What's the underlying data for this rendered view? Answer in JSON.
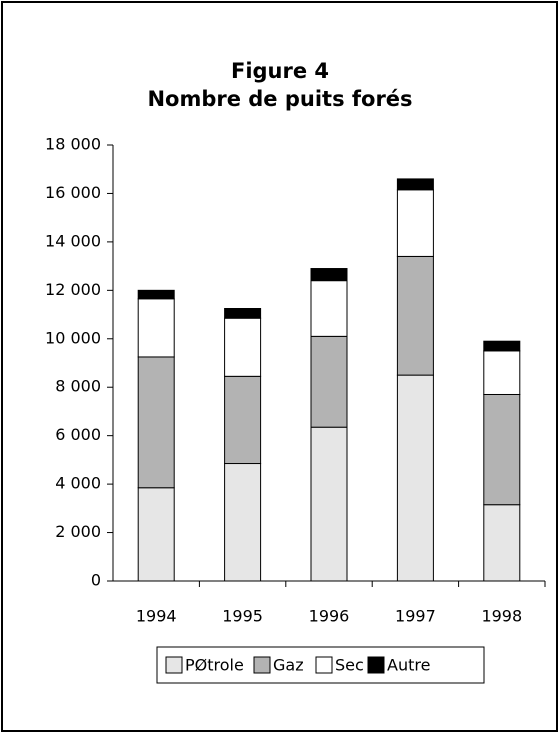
{
  "chart_data": {
    "type": "stacked_bar",
    "title": "Figure 4",
    "subtitle": "Nombre de puits forés",
    "categories": [
      "1994",
      "1995",
      "1996",
      "1997",
      "1998"
    ],
    "series": [
      {
        "name": "PØtrole",
        "color": "#e6e6e6",
        "values": [
          3850,
          4850,
          6350,
          8500,
          3150
        ]
      },
      {
        "name": "Gaz",
        "color": "#b3b3b3",
        "values": [
          5400,
          3600,
          3750,
          4900,
          4550
        ]
      },
      {
        "name": "Sec",
        "color": "#ffffff",
        "values": [
          2400,
          2400,
          2300,
          2750,
          1800
        ]
      },
      {
        "name": "Autre",
        "color": "#000000",
        "values": [
          350,
          400,
          500,
          450,
          400
        ]
      }
    ],
    "ylim": [
      0,
      18000
    ],
    "yticks": [
      0,
      {
        "value": 2000,
        "label": "2 000"
      },
      {
        "value": 4000,
        "label": "4 000"
      },
      {
        "value": 6000,
        "label": "6 000"
      },
      {
        "value": 8000,
        "label": "8 000"
      },
      {
        "value": 10000,
        "label": "10 000"
      },
      {
        "value": 12000,
        "label": "12 000"
      },
      {
        "value": 14000,
        "label": "14 000"
      },
      {
        "value": 16000,
        "label": "16 000"
      },
      {
        "value": 18000,
        "label": "18 000"
      }
    ],
    "legend": "bottom"
  }
}
